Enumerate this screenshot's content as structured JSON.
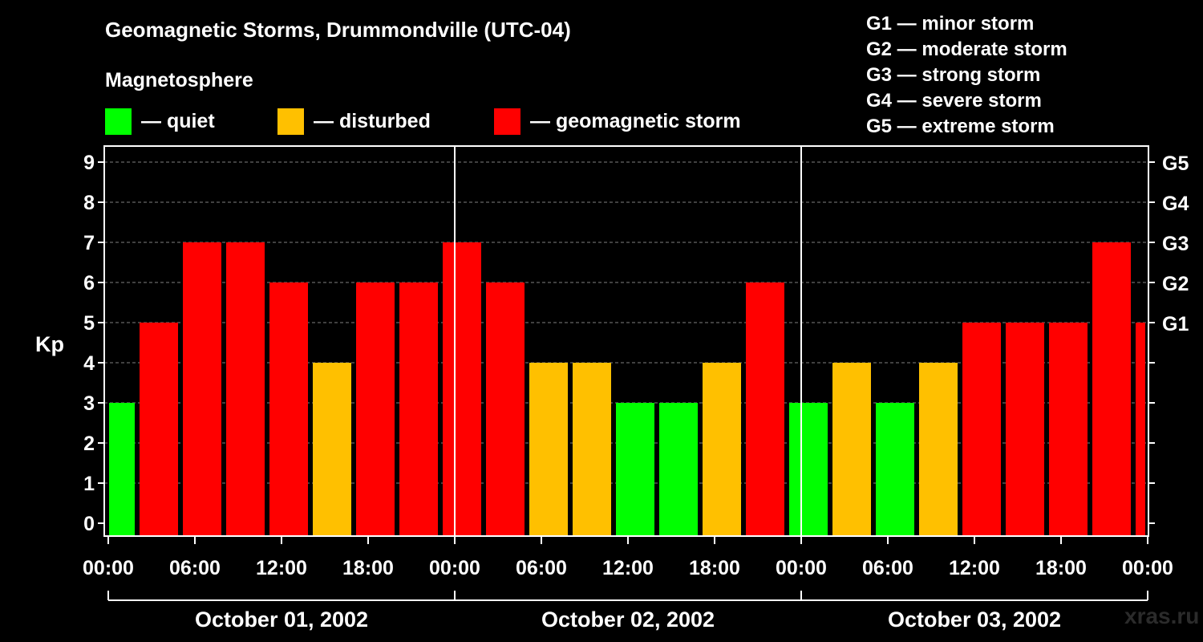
{
  "chart_data": {
    "type": "bar",
    "title": "Geomagnetic Storms, Drummondville (UTC-04)",
    "subtitle": "Magnetosphere",
    "ylabel": "Kp",
    "ylim": [
      0,
      9
    ],
    "yticks": [
      "0",
      "1",
      "2",
      "3",
      "4",
      "5",
      "6",
      "7",
      "8",
      "9"
    ],
    "right_ticks": [
      {
        "kp": 5,
        "label": "G1"
      },
      {
        "kp": 6,
        "label": "G2"
      },
      {
        "kp": 7,
        "label": "G3"
      },
      {
        "kp": 8,
        "label": "G4"
      },
      {
        "kp": 9,
        "label": "G5"
      }
    ],
    "legend": [
      {
        "label": "— quiet",
        "color": "#00ff00"
      },
      {
        "label": "— disturbed",
        "color": "#ffc000"
      },
      {
        "label": "— geomagnetic storm",
        "color": "#ff0000"
      }
    ],
    "storm_scale": [
      "G1 — minor storm",
      "G2 — moderate storm",
      "G3 — strong storm",
      "G4 — severe storm",
      "G5 — extreme storm"
    ],
    "x_tick_labels": [
      "00:00",
      "06:00",
      "12:00",
      "18:00",
      "00:00",
      "06:00",
      "12:00",
      "18:00",
      "00:00",
      "06:00",
      "12:00",
      "18:00",
      "00:00"
    ],
    "day_labels": [
      "October 01, 2002",
      "October 02, 2002",
      "October 03, 2002"
    ],
    "x_start_offset_hours": -1,
    "hours_per_bar": 3,
    "values": [
      3,
      5,
      7,
      7,
      6,
      4,
      6,
      6,
      7,
      6,
      4,
      4,
      3,
      3,
      4,
      6,
      3,
      4,
      3,
      4,
      5,
      5,
      5,
      7,
      5
    ],
    "colors": {
      "quiet": "#00ff00",
      "disturbed": "#ffc000",
      "storm": "#ff0000"
    },
    "grid": true
  },
  "watermark": "xras.ru"
}
